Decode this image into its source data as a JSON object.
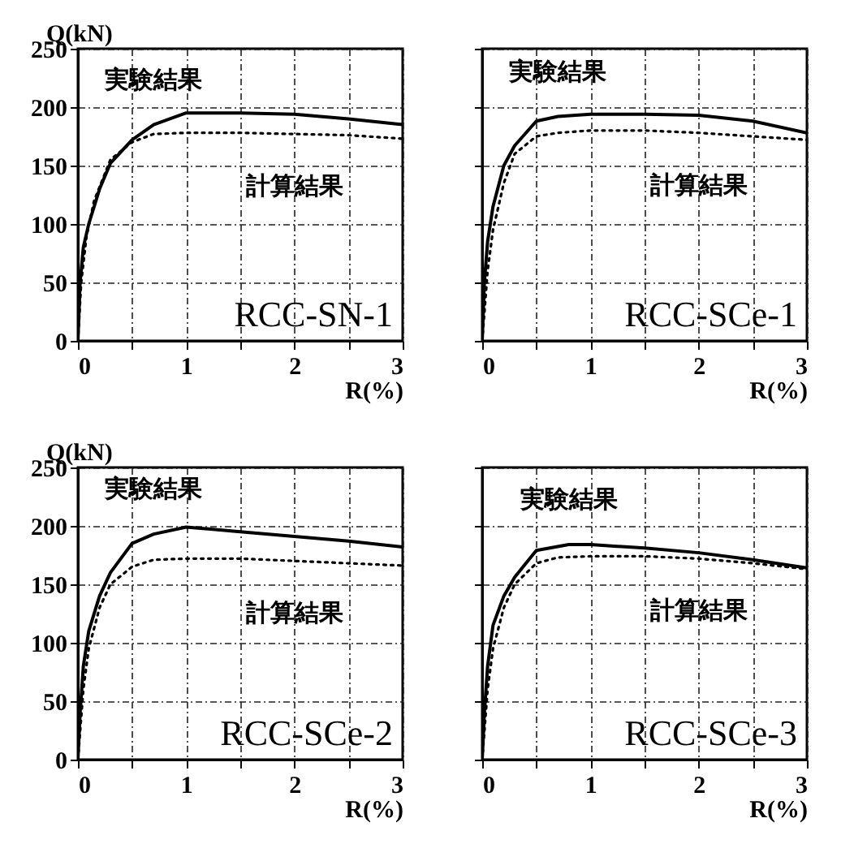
{
  "chart_data": [
    {
      "type": "line",
      "ylabel": "Q(kN)",
      "xlabel": "R(%)",
      "annotations": [
        "RCC-SN-1"
      ],
      "xlim": [
        0,
        3
      ],
      "ylim": [
        0,
        250
      ],
      "xticks": [
        0,
        {
          "value": 0.5,
          "label": null
        },
        1,
        {
          "value": 1.5,
          "label": null
        },
        2,
        {
          "value": 2.5,
          "label": null
        },
        3
      ],
      "yticks": [
        0,
        50,
        100,
        150,
        200,
        250
      ],
      "grid": true,
      "legend": false,
      "series": [
        {
          "name": "実験結果",
          "color": "#000000",
          "line_style": "solid",
          "x": [
            0,
            0.02,
            0.05,
            0.1,
            0.2,
            0.3,
            0.5,
            0.7,
            1,
            1.5,
            2,
            2.5,
            3
          ],
          "values": [
            0,
            50,
            80,
            100,
            130,
            152,
            172,
            185,
            195,
            195,
            194,
            190,
            185
          ]
        },
        {
          "name": "計算結果",
          "color": "#000000",
          "line_style": "dotted",
          "x": [
            0,
            0.03,
            0.08,
            0.15,
            0.3,
            0.5,
            0.7,
            1,
            1.5,
            2,
            2.5,
            3
          ],
          "values": [
            0,
            50,
            90,
            120,
            155,
            170,
            177,
            178,
            178,
            177,
            176,
            173
          ]
        }
      ]
    },
    {
      "type": "line",
      "xlabel": "R(%)",
      "annotations": [
        "RCC-SCe-1"
      ],
      "xlim": [
        0,
        3
      ],
      "ylim": [
        0,
        250
      ],
      "xticks": [
        0,
        {
          "value": 0.5,
          "label": null
        },
        1,
        {
          "value": 1.5,
          "label": null
        },
        2,
        {
          "value": 2.5,
          "label": null
        },
        3
      ],
      "yticks": [
        0,
        50,
        100,
        150,
        200,
        250
      ],
      "tick_labels": "x",
      "grid": true,
      "legend": false,
      "series": [
        {
          "name": "実験結果",
          "color": "#000000",
          "line_style": "solid",
          "x": [
            0,
            0.02,
            0.05,
            0.1,
            0.2,
            0.3,
            0.5,
            0.7,
            1,
            1.5,
            2,
            2.5,
            3
          ],
          "values": [
            0,
            50,
            85,
            115,
            150,
            167,
            188,
            192,
            194,
            194,
            193,
            188,
            178
          ]
        },
        {
          "name": "計算結果",
          "color": "#000000",
          "line_style": "dotted",
          "x": [
            0,
            0.05,
            0.1,
            0.2,
            0.3,
            0.5,
            0.7,
            1,
            1.5,
            2,
            2.5,
            3
          ],
          "values": [
            0,
            60,
            95,
            135,
            160,
            175,
            178,
            180,
            180,
            178,
            175,
            172
          ]
        }
      ]
    },
    {
      "type": "line",
      "ylabel": "Q(kN)",
      "xlabel": "R(%)",
      "annotations": [
        "RCC-SCe-2"
      ],
      "xlim": [
        0,
        3
      ],
      "ylim": [
        0,
        250
      ],
      "xticks": [
        0,
        {
          "value": 0.5,
          "label": null
        },
        1,
        {
          "value": 1.5,
          "label": null
        },
        2,
        {
          "value": 2.5,
          "label": null
        },
        3
      ],
      "yticks": [
        0,
        50,
        100,
        150,
        200,
        250
      ],
      "grid": true,
      "legend": false,
      "series": [
        {
          "name": "実験結果",
          "color": "#000000",
          "line_style": "solid",
          "x": [
            0,
            0.02,
            0.05,
            0.1,
            0.2,
            0.3,
            0.5,
            0.7,
            1,
            1.5,
            2,
            2.5,
            3
          ],
          "values": [
            0,
            40,
            80,
            110,
            140,
            160,
            185,
            193,
            199,
            195,
            191,
            187,
            182
          ]
        },
        {
          "name": "計算結果",
          "color": "#000000",
          "line_style": "dotted",
          "x": [
            0,
            0.05,
            0.1,
            0.2,
            0.3,
            0.5,
            0.7,
            1,
            1.5,
            2,
            2.5,
            3
          ],
          "values": [
            0,
            60,
            95,
            130,
            150,
            165,
            171,
            172,
            172,
            170,
            168,
            166
          ]
        }
      ]
    },
    {
      "type": "line",
      "xlabel": "R(%)",
      "annotations": [
        "RCC-SCe-3"
      ],
      "xlim": [
        0,
        3
      ],
      "ylim": [
        0,
        250
      ],
      "xticks": [
        0,
        {
          "value": 0.5,
          "label": null
        },
        1,
        {
          "value": 1.5,
          "label": null
        },
        2,
        {
          "value": 2.5,
          "label": null
        },
        3
      ],
      "yticks": [
        0,
        50,
        100,
        150,
        200,
        250
      ],
      "tick_labels": "x",
      "grid": true,
      "legend": false,
      "series": [
        {
          "name": "実験結果",
          "color": "#000000",
          "line_style": "solid",
          "x": [
            0,
            0.02,
            0.05,
            0.1,
            0.2,
            0.3,
            0.5,
            0.8,
            1,
            1.5,
            2,
            2.5,
            3
          ],
          "values": [
            0,
            40,
            80,
            115,
            140,
            156,
            179,
            184,
            184,
            181,
            177,
            171,
            164
          ]
        },
        {
          "name": "計算結果",
          "color": "#000000",
          "line_style": "dotted",
          "x": [
            0,
            0.05,
            0.1,
            0.2,
            0.3,
            0.5,
            0.7,
            1,
            1.5,
            2,
            2.5,
            3
          ],
          "values": [
            0,
            60,
            95,
            130,
            150,
            168,
            173,
            174,
            174,
            172,
            168,
            163
          ]
        }
      ]
    }
  ]
}
